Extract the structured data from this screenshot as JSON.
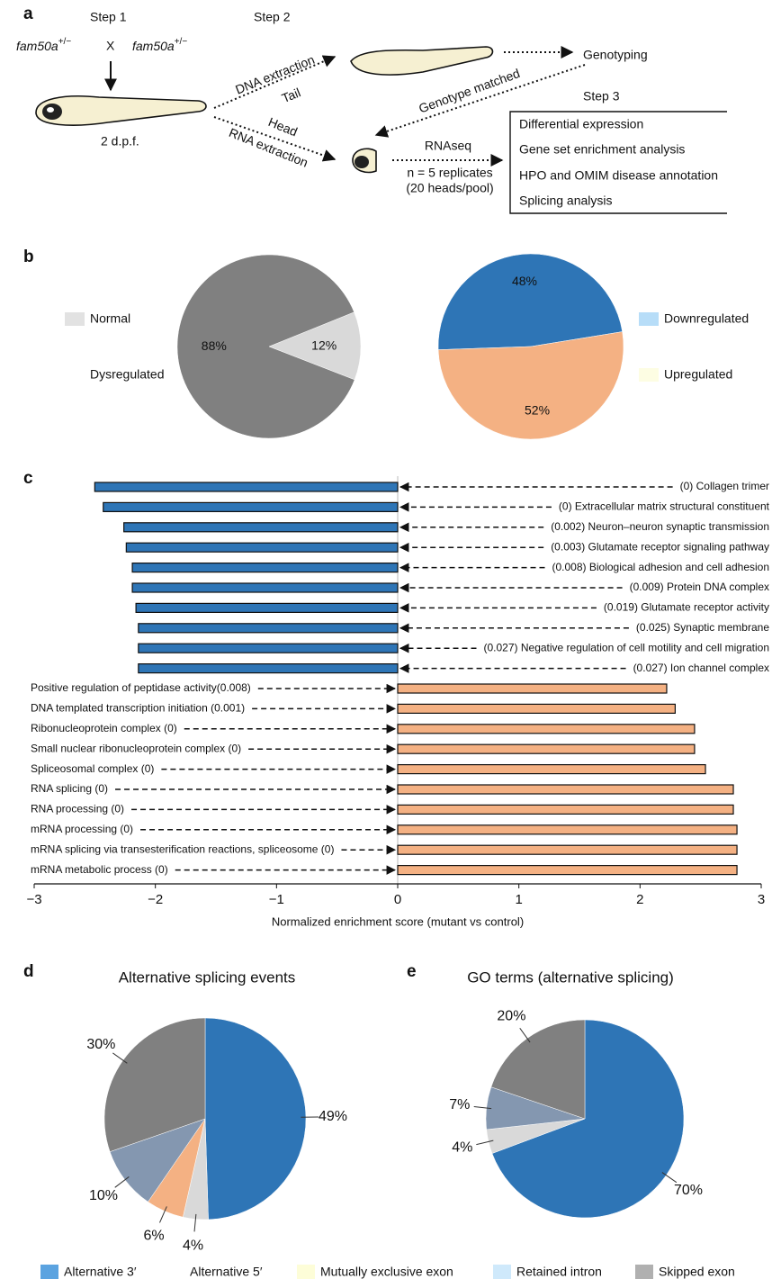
{
  "panel_labels": [
    "a",
    "b",
    "c",
    "d",
    "e"
  ],
  "diagram": {
    "steps": [
      "Step 1",
      "Step 2",
      "Step 3"
    ],
    "gene": "fam50a",
    "genotype": "+/−",
    "cross": "X",
    "age": "2 d.p.f.",
    "dna_extraction": "DNA extraction",
    "tail": "Tail",
    "head": "Head",
    "rna_extraction": "RNA extraction",
    "genotyping": "Genotyping",
    "genotype_matched": "Genotype matched",
    "rnaseq": "RNAseq",
    "replicates": "n = 5 replicates",
    "pool": "(20 heads/pool)",
    "analyses": [
      "Differential expression",
      "Gene set enrichment analysis",
      "HPO and OMIM disease annotation",
      "Splicing analysis"
    ]
  },
  "chart_data": [
    {
      "type": "pie",
      "categories": [
        "Normal",
        "Dysregulated"
      ],
      "values": [
        12,
        88
      ],
      "value_labels": [
        "12%",
        "88%"
      ],
      "colors": [
        "#d9d9d9",
        "#808080"
      ],
      "legend_colors": [
        "#e2e2e2",
        "#ffffff"
      ]
    },
    {
      "type": "pie",
      "categories": [
        "Downregulated",
        "Upregulated"
      ],
      "values": [
        48,
        52
      ],
      "value_labels": [
        "48%",
        "52%"
      ],
      "colors": [
        "#2e75b6",
        "#f4b183"
      ],
      "legend_colors": [
        "#b7ddf8",
        "#fdfde3"
      ]
    },
    {
      "type": "bar",
      "orientation": "horizontal",
      "categories": [
        "(0) Collagen trimer",
        "(0) Extracellular matrix structural constituent",
        "(0.002) Neuron–neuron synaptic transmission",
        "(0.003) Glutamate receptor signaling pathway",
        "(0.008) Biological adhesion and cell adhesion",
        "(0.009) Protein DNA complex",
        "(0.019) Glutamate receptor activity",
        "(0.025) Synaptic membrane",
        "(0.027) Negative regulation of cell motility and cell migration",
        "(0.027) Ion channel complex",
        "Positive regulation of peptidase activity(0.008)",
        "DNA templated transcription initiation (0.001)",
        "Ribonucleoprotein complex (0)",
        "Small nuclear ribonucleoprotein complex (0)",
        "Spliceosomal complex (0)",
        "RNA splicing (0)",
        "RNA processing (0)",
        "mRNA processing (0)",
        "mRNA splicing via transesterification reactions, spliceosome (0)",
        "mRNA metabolic process (0)"
      ],
      "values": [
        -2.5,
        -2.43,
        -2.26,
        -2.24,
        -2.19,
        -2.19,
        -2.16,
        -2.14,
        -2.14,
        -2.14,
        2.22,
        2.29,
        2.45,
        2.45,
        2.54,
        2.77,
        2.77,
        2.8,
        2.8,
        2.8
      ],
      "colors": [
        "#2e75b6",
        "#2e75b6",
        "#2e75b6",
        "#2e75b6",
        "#2e75b6",
        "#2e75b6",
        "#2e75b6",
        "#2e75b6",
        "#2e75b6",
        "#2e75b6",
        "#f4b183",
        "#f4b183",
        "#f4b183",
        "#f4b183",
        "#f4b183",
        "#f4b183",
        "#f4b183",
        "#f4b183",
        "#f4b183",
        "#f4b183"
      ],
      "xlim": [
        -3,
        3
      ],
      "xticks": [
        {
          "value": -3,
          "label": "−3"
        },
        {
          "value": -2,
          "label": "−2"
        },
        {
          "value": -1,
          "label": "−1"
        },
        0,
        1,
        2,
        3
      ],
      "xlabel": "Normalized enrichment score (mutant vs control)"
    },
    {
      "type": "pie",
      "title": "Alternative splicing events",
      "values": [
        49,
        4,
        6,
        10,
        30
      ],
      "value_labels": [
        "49%",
        "4%",
        "6%",
        "10%",
        "30%"
      ],
      "colors": [
        "#2e75b6",
        "#d9d9d9",
        "#f4b183",
        "#8497b0",
        "#808080"
      ]
    },
    {
      "type": "pie",
      "title": "GO terms (alternative splicing)",
      "values": [
        70,
        4,
        7,
        20
      ],
      "value_labels": [
        "70%",
        "4%",
        "7%",
        "20%"
      ],
      "colors": [
        "#2e75b6",
        "#d9d9d9",
        "#8497b0",
        "#808080"
      ]
    }
  ],
  "legend": {
    "labels": [
      "Alternative 3′",
      "Alternative 5′",
      "Mutually exclusive exon",
      "Retained intron",
      "Skipped exon"
    ],
    "colors": [
      "#5ba3e0",
      "#ffffff",
      "#fdfdd8",
      "#cfe9fb",
      "#b0b0b0"
    ]
  }
}
